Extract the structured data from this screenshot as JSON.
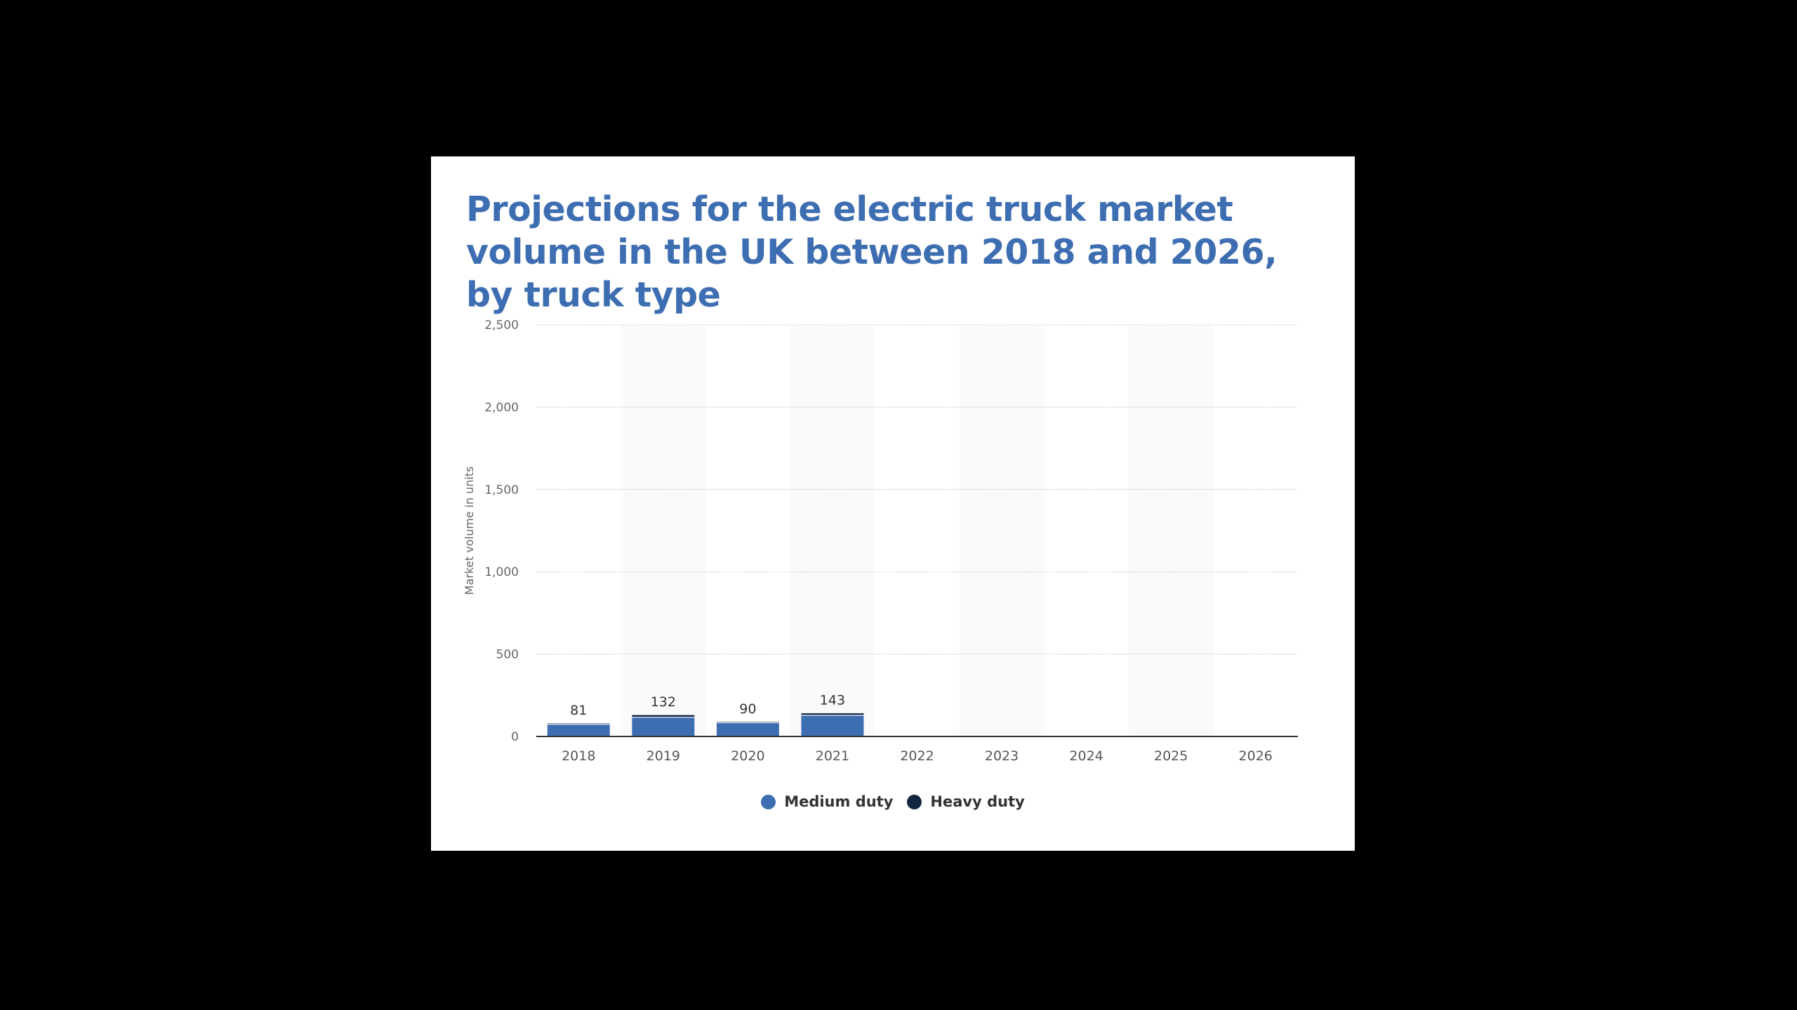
{
  "title": "Projections for the electric truck market volume in the UK between 2018 and 2026, by truck type",
  "chart_data": {
    "type": "bar",
    "stacked": true,
    "categories": [
      "2018",
      "2019",
      "2020",
      "2021",
      "2022",
      "2023",
      "2024",
      "2025",
      "2026"
    ],
    "series": [
      {
        "name": "Medium duty",
        "color": "#3e6eb2",
        "values": [
          74,
          117,
          83,
          129,
          0,
          0,
          0,
          0,
          0
        ]
      },
      {
        "name": "Heavy duty",
        "color": "#13263f",
        "values": [
          7,
          15,
          7,
          14,
          0,
          0,
          0,
          0,
          0
        ]
      }
    ],
    "totals": [
      "81",
      "132",
      "90",
      "143",
      "",
      "",
      "",
      "",
      ""
    ],
    "ylabel": "Market volume in units",
    "xlabel": "",
    "ylim": [
      0,
      2500
    ],
    "yticks": [
      0,
      500,
      1000,
      1500,
      2000,
      2500
    ],
    "ytick_labels": [
      "0",
      "500",
      "1,000",
      "1,500",
      "2,000",
      "2,500"
    ],
    "grid": true,
    "legend_position": "bottom-center"
  }
}
